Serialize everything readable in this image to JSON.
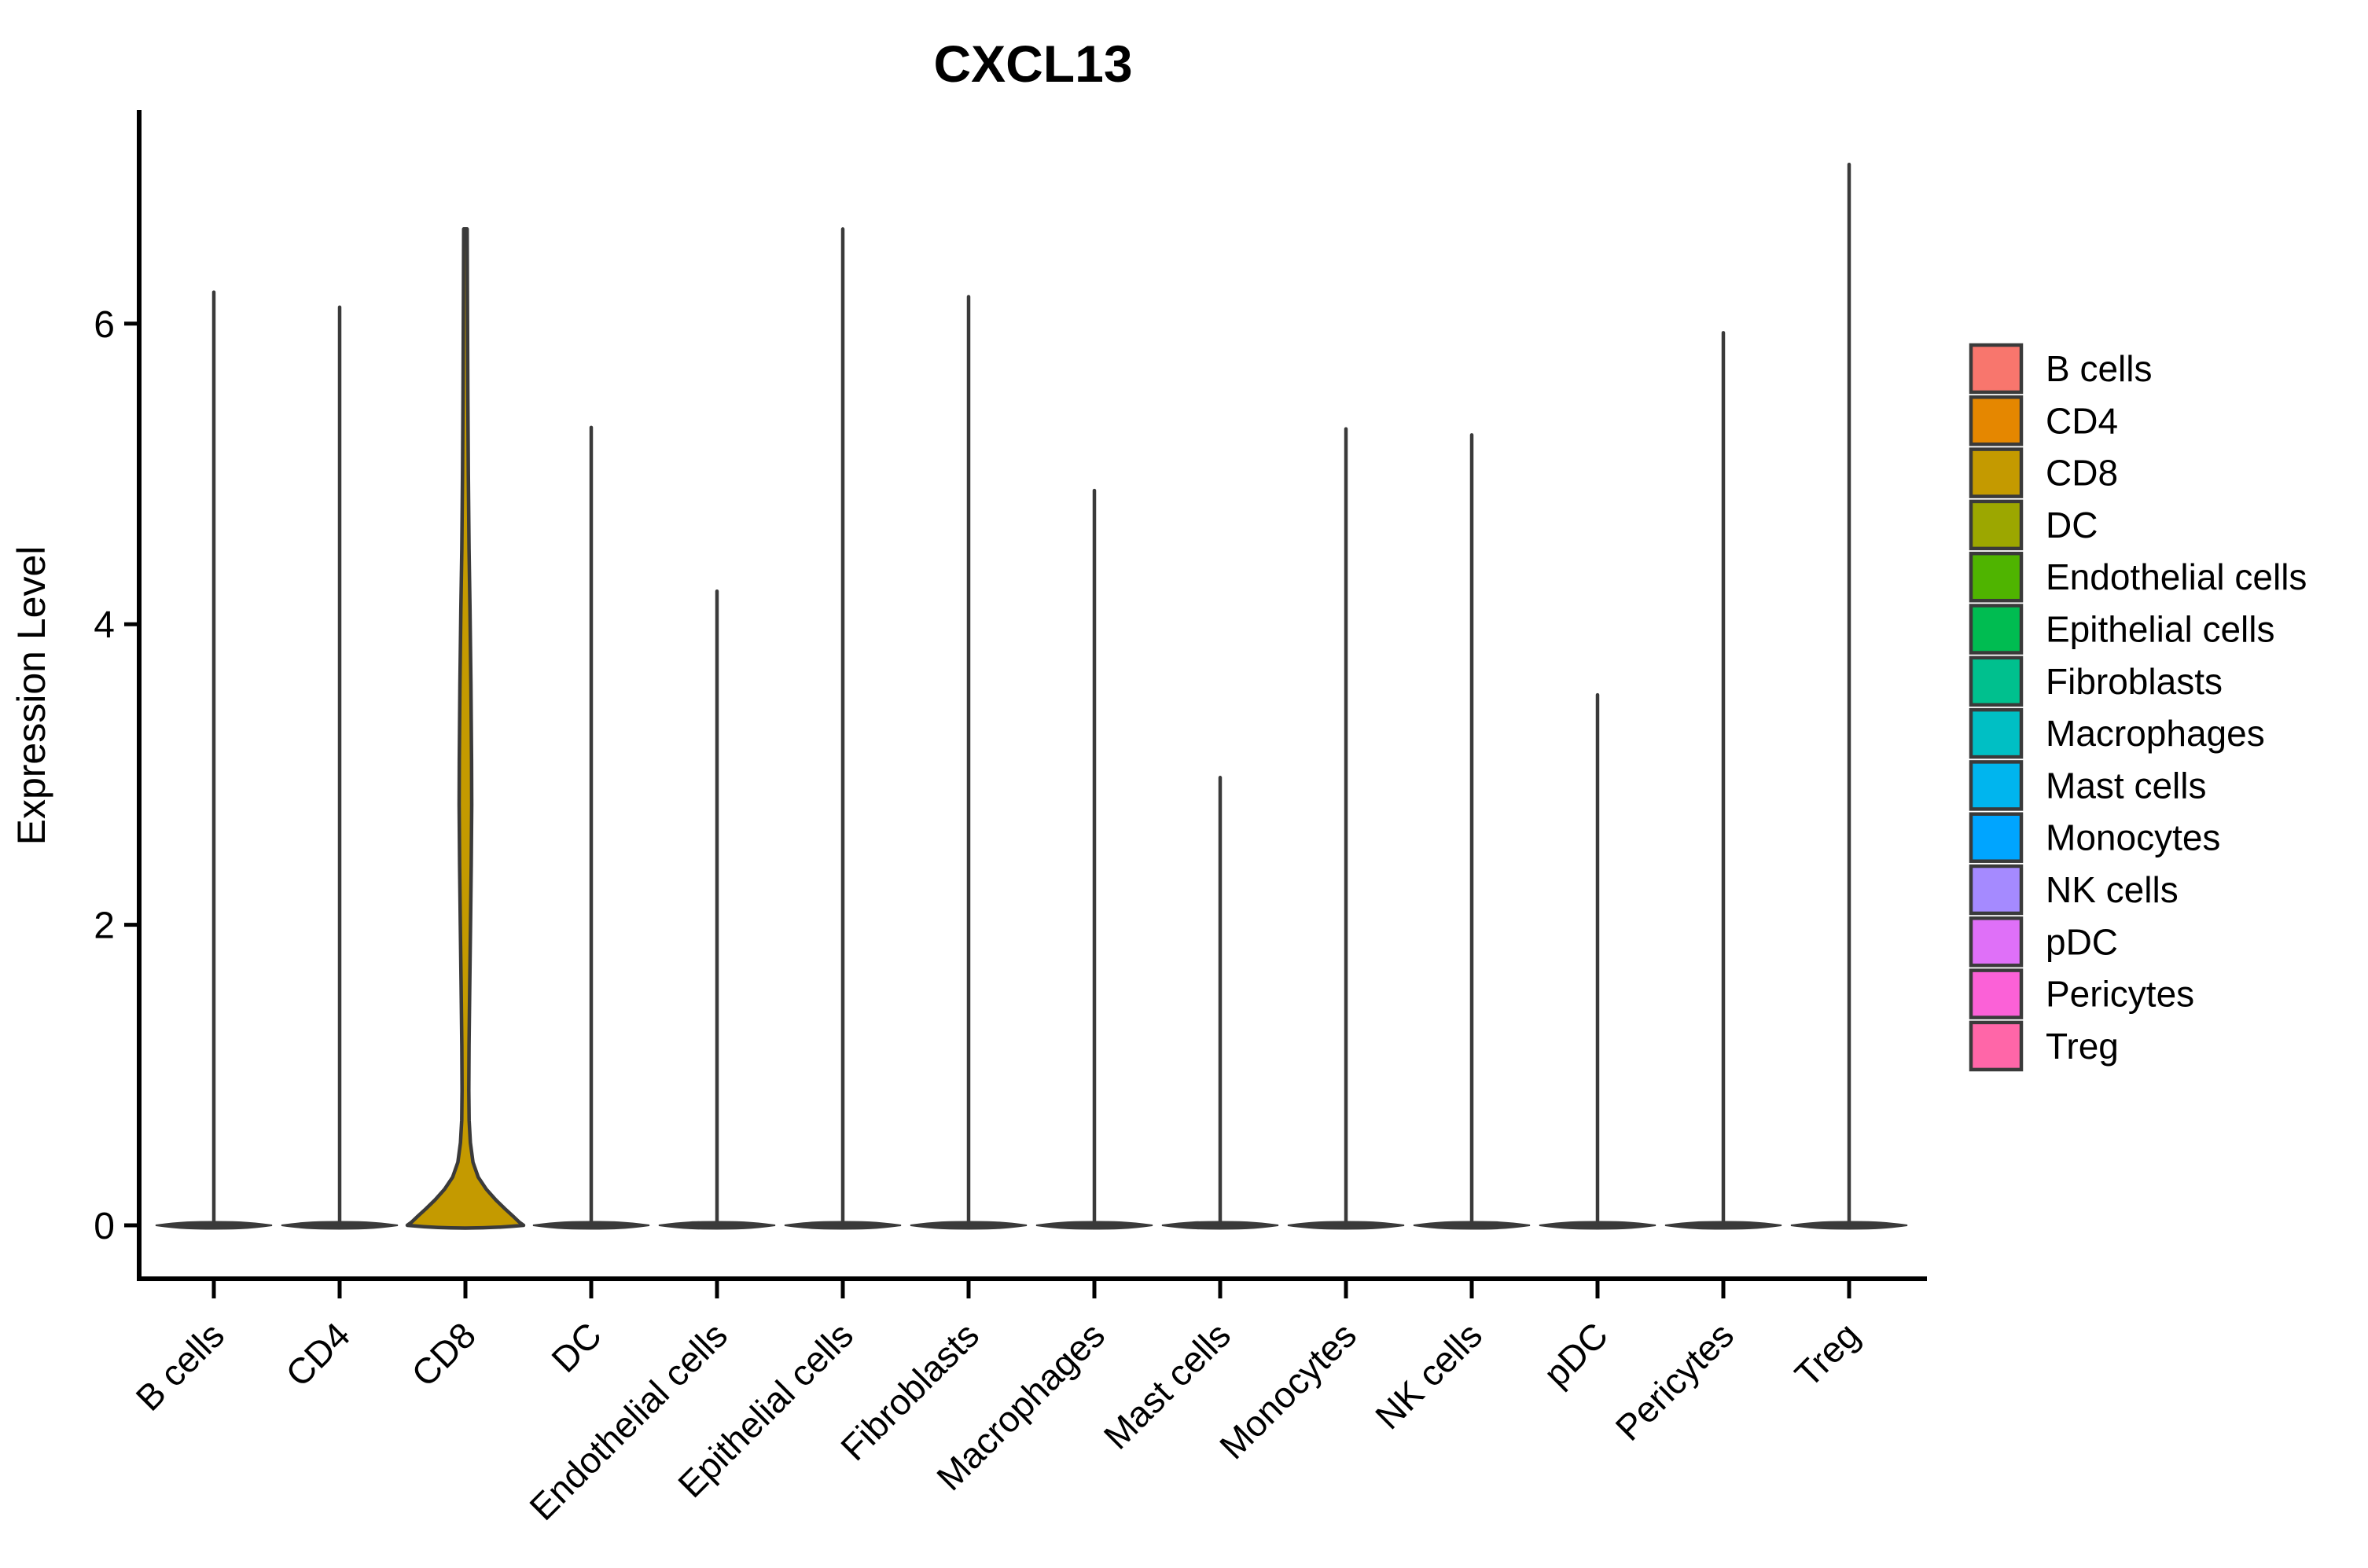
{
  "title": "CXCL13",
  "y_axis": {
    "label": "Expression Level",
    "ticks": [
      "0",
      "2",
      "4",
      "6"
    ]
  },
  "legend": {
    "position": "right",
    "entries": [
      "B cells",
      "CD4",
      "CD8",
      "DC",
      "Endothelial cells",
      "Epithelial cells",
      "Fibroblasts",
      "Macrophages",
      "Mast cells",
      "Monocytes",
      "NK cells",
      "pDC",
      "Pericytes",
      "Treg"
    ]
  },
  "chart_data": {
    "type": "violin",
    "title": "CXCL13",
    "xlabel": "",
    "ylabel": "Expression Level",
    "ylim": [
      -0.36,
      7.45
    ],
    "yticks": [
      0,
      2,
      4,
      6
    ],
    "grid": false,
    "legend_position": "right",
    "outline_color": "#3A3A3A",
    "categories": [
      "B cells",
      "CD4",
      "CD8",
      "DC",
      "Endothelial cells",
      "Epithelial cells",
      "Fibroblasts",
      "Macrophages",
      "Mast cells",
      "Monocytes",
      "NK cells",
      "pDC",
      "Pericytes",
      "Treg"
    ],
    "series": [
      {
        "name": "B cells",
        "color": "#F8766D",
        "peak": 6.22,
        "shape": "needle"
      },
      {
        "name": "CD4",
        "color": "#E58700",
        "peak": 6.12,
        "shape": "needle"
      },
      {
        "name": "CD8",
        "color": "#C49A00",
        "peak": 6.63,
        "shape": "violin",
        "profile": [
          [
            6.63,
            0.03
          ],
          [
            6.2,
            0.034
          ],
          [
            5.5,
            0.042
          ],
          [
            5.0,
            0.05
          ],
          [
            4.5,
            0.062
          ],
          [
            4.1,
            0.078
          ],
          [
            3.6,
            0.094
          ],
          [
            3.1,
            0.105
          ],
          [
            2.8,
            0.108
          ],
          [
            2.4,
            0.1
          ],
          [
            2.0,
            0.088
          ],
          [
            1.6,
            0.075
          ],
          [
            1.2,
            0.062
          ],
          [
            0.9,
            0.058
          ],
          [
            0.7,
            0.064
          ],
          [
            0.55,
            0.085
          ],
          [
            0.42,
            0.13
          ],
          [
            0.32,
            0.22
          ],
          [
            0.24,
            0.36
          ],
          [
            0.17,
            0.52
          ],
          [
            0.11,
            0.68
          ],
          [
            0.06,
            0.82
          ],
          [
            0.02,
            0.93
          ],
          [
            0.0,
            1.0
          ]
        ]
      },
      {
        "name": "DC",
        "color": "#9CA700",
        "peak": 5.32,
        "shape": "needle"
      },
      {
        "name": "Endothelial cells",
        "color": "#4FB400",
        "peak": 4.23,
        "shape": "needle"
      },
      {
        "name": "Epithelial cells",
        "color": "#00BC51",
        "peak": 6.64,
        "shape": "needle"
      },
      {
        "name": "Fibroblasts",
        "color": "#00C08E",
        "peak": 6.19,
        "shape": "needle"
      },
      {
        "name": "Macrophages",
        "color": "#00BFC4",
        "peak": 4.9,
        "shape": "needle"
      },
      {
        "name": "Mast cells",
        "color": "#00B5EE",
        "peak": 2.99,
        "shape": "needle"
      },
      {
        "name": "Monocytes",
        "color": "#00A5FF",
        "peak": 5.31,
        "shape": "needle"
      },
      {
        "name": "NK cells",
        "color": "#A58AFF",
        "peak": 5.27,
        "shape": "needle"
      },
      {
        "name": "pDC",
        "color": "#DF70F8",
        "peak": 3.54,
        "shape": "needle"
      },
      {
        "name": "Pericytes",
        "color": "#FB61D7",
        "peak": 5.95,
        "shape": "needle"
      },
      {
        "name": "Treg",
        "color": "#FF66A8",
        "peak": 7.07,
        "shape": "needle"
      }
    ]
  }
}
